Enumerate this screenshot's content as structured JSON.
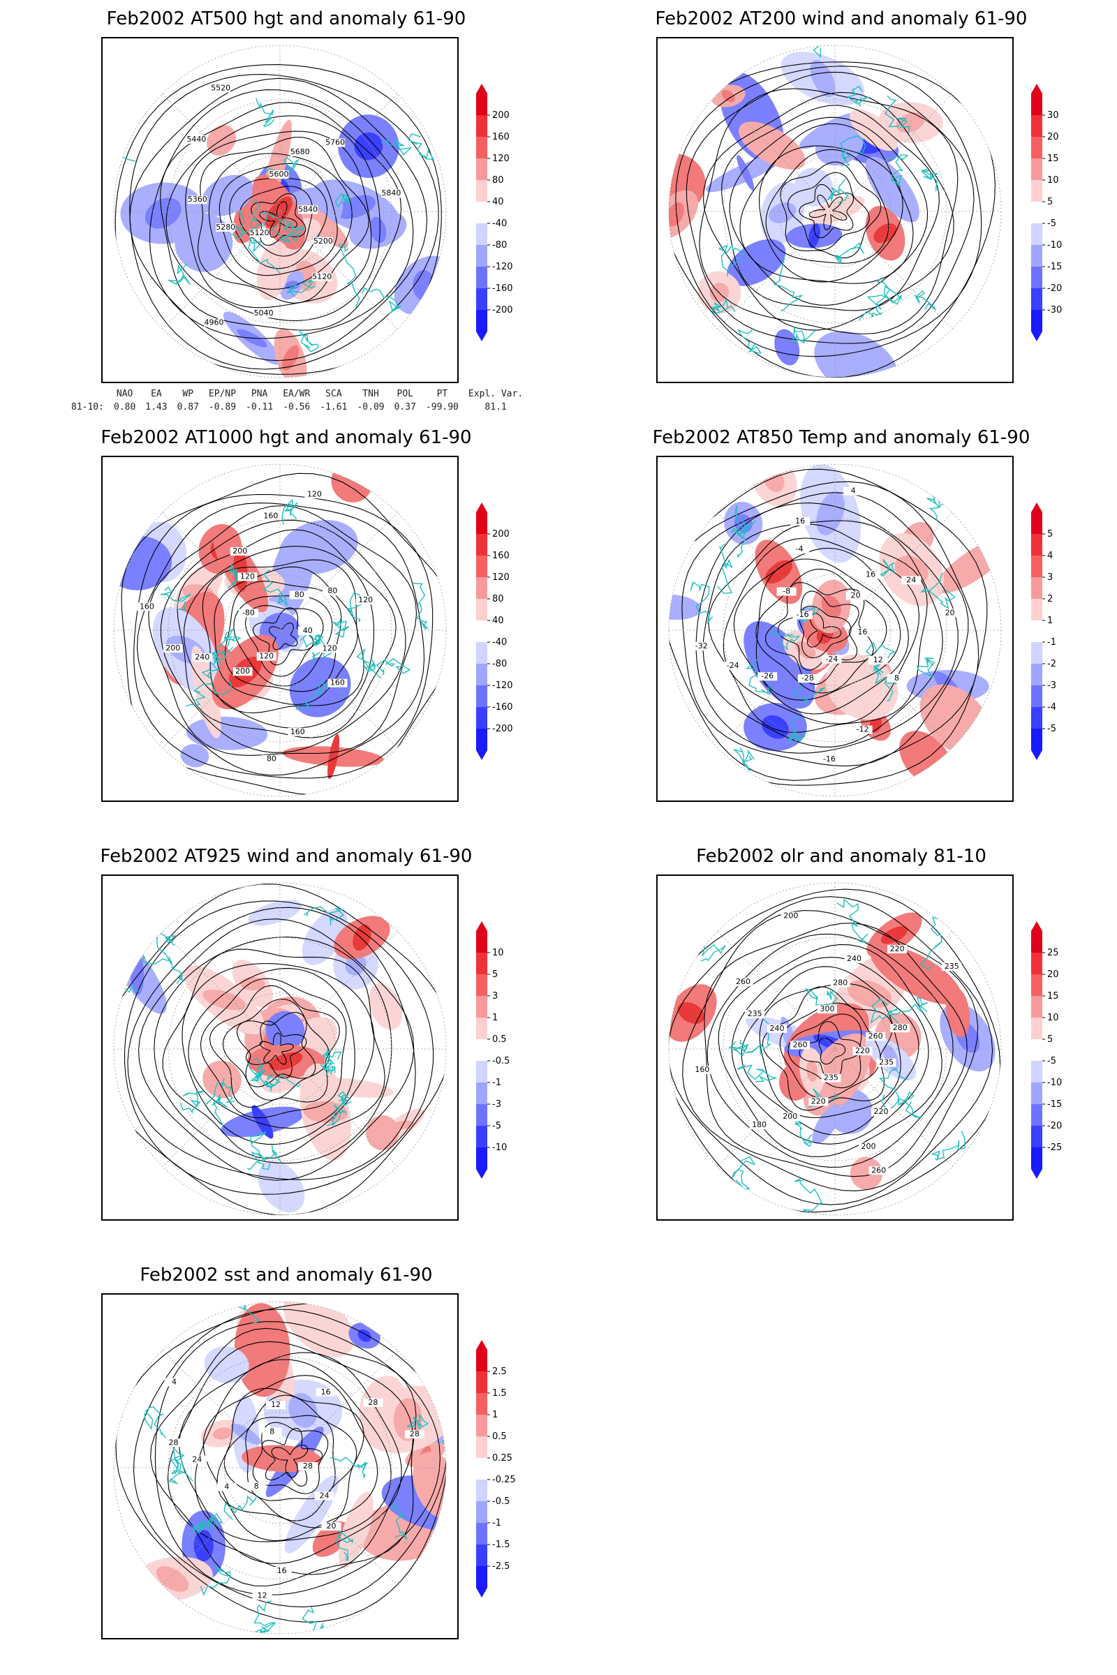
{
  "panels": [
    {
      "title": "Feb2002 AT500 hgt and anomaly 61-90",
      "colorbar": [
        "200",
        "160",
        "120",
        "80",
        "40",
        "-40",
        "-80",
        "-120",
        "-160",
        "-200"
      ],
      "contour_labels": [
        "5840",
        "5200",
        "5120",
        "5040",
        "4960",
        "5120",
        "5280",
        "5360",
        "5440",
        "5520",
        "5600",
        "5680",
        "5760",
        "5840"
      ]
    },
    {
      "title": "Feb2002 AT200 wind and anomaly 61-90",
      "colorbar": [
        "30",
        "20",
        "15",
        "10",
        "5",
        "-5",
        "-10",
        "-15",
        "-20",
        "-30"
      ],
      "contour_labels": []
    },
    {
      "title": "Feb2002 AT1000 hgt and anomaly 61-90",
      "colorbar": [
        "200",
        "160",
        "120",
        "80",
        "40",
        "-40",
        "-80",
        "-120",
        "-160",
        "-200"
      ],
      "contour_labels": [
        "40",
        "120",
        "160",
        "160",
        "80",
        "120",
        "200",
        "240",
        "200",
        "160",
        "-80",
        "120",
        "200",
        "160",
        "120",
        "80",
        "80",
        "120"
      ]
    },
    {
      "title": "Feb2002 AT850 Temp and anomaly 61-90",
      "colorbar": [
        "5",
        "4",
        "3",
        "2",
        "1",
        "-1",
        "-2",
        "-3",
        "-4",
        "-5"
      ],
      "contour_labels": [
        "16",
        "12",
        "8",
        "-12",
        "-16",
        "-24",
        "-28",
        "-26",
        "-24",
        "-32",
        "-16",
        "-8",
        "-4",
        "16",
        "4",
        "20",
        "16",
        "24",
        "20"
      ]
    },
    {
      "title": "Feb2002 AT925 wind and anomaly 61-90",
      "colorbar": [
        "10",
        "5",
        "3",
        "1",
        "0.5",
        "-0.5",
        "-1",
        "-3",
        "-5",
        "-10"
      ],
      "contour_labels": []
    },
    {
      "title": "Feb2002 olr and anomaly 81-10",
      "colorbar": [
        "25",
        "20",
        "15",
        "10",
        "5",
        "-5",
        "-10",
        "-15",
        "-20",
        "-25"
      ],
      "contour_labels": [
        "220",
        "235",
        "220",
        "200",
        "260",
        "235",
        "220",
        "200",
        "180",
        "160",
        "260",
        "240",
        "235",
        "260",
        "200",
        "300",
        "280",
        "240",
        "220",
        "235",
        "260",
        "280"
      ]
    },
    {
      "title": "Feb2002 sst and anomaly 61-90",
      "colorbar": [
        "2.5",
        "1.5",
        "1",
        "0.5",
        "0.25",
        "-0.25",
        "-0.5",
        "-1",
        "-1.5",
        "-2.5"
      ],
      "contour_labels": [
        "28",
        "24",
        "20",
        "16",
        "12",
        "8",
        "4",
        "24",
        "28",
        "4",
        "8",
        "12",
        "16",
        "28",
        "28"
      ]
    }
  ],
  "teleconnection_indices": {
    "headers": [
      "NAO",
      "EA",
      "WP",
      "EP/NP",
      "PNA",
      "EA/WR",
      "SCA",
      "TNH",
      "POL",
      "PT",
      "Expl. Var."
    ],
    "row_label": "81-10:",
    "values": [
      "0.80",
      "1.43",
      "0.87",
      "-0.89",
      "-0.11",
      "-0.56",
      "-1.61",
      "-0.09",
      "0.37",
      "-99.90",
      "81.1"
    ]
  },
  "colors": {
    "positive_max": "#e0001a",
    "negative_max": "#1a1aff",
    "coastline": "#1fbfbf",
    "contour": "#000000"
  }
}
